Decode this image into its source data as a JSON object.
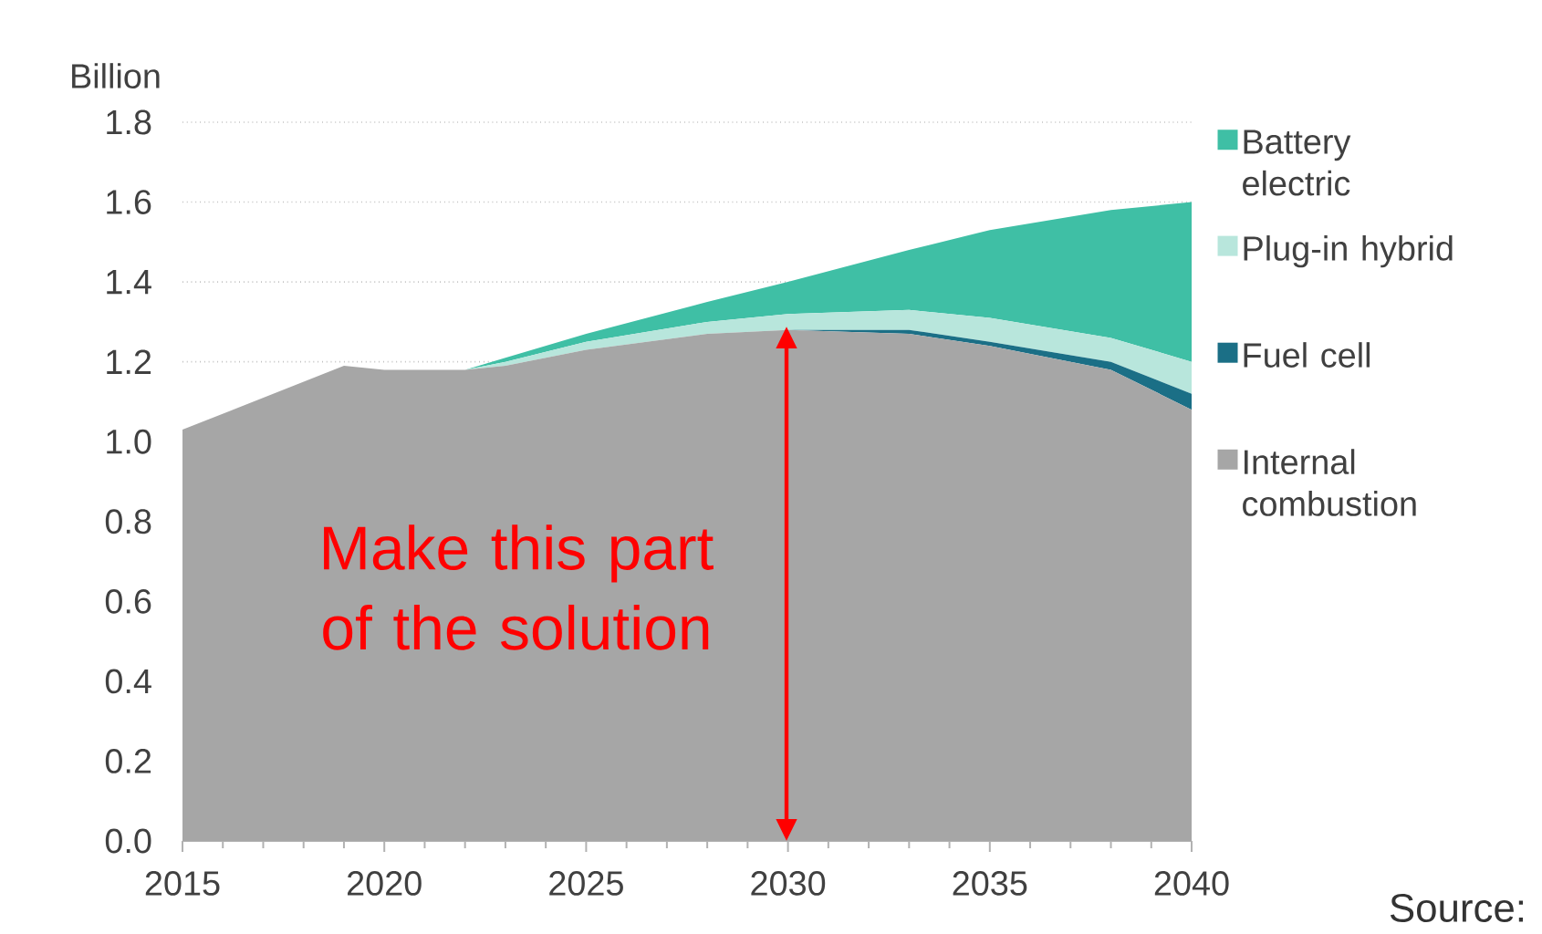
{
  "chart_data": {
    "type": "area",
    "stacked": true,
    "ylabel": "Billion",
    "x": [
      2015,
      2019,
      2020,
      2022,
      2023,
      2025,
      2028,
      2030,
      2033,
      2035,
      2038,
      2040
    ],
    "series": [
      {
        "name": "Internal combustion",
        "color": "#a6a6a6",
        "values": [
          1.03,
          1.19,
          1.18,
          1.18,
          1.19,
          1.23,
          1.27,
          1.28,
          1.27,
          1.24,
          1.18,
          1.08
        ]
      },
      {
        "name": "Fuel cell",
        "color": "#1b6f86",
        "values": [
          0,
          0,
          0,
          0,
          0,
          0,
          0,
          0,
          0.01,
          0.01,
          0.02,
          0.04
        ]
      },
      {
        "name": "Plug-in hybrid",
        "color": "#b8e6dc",
        "values": [
          0,
          0,
          0,
          0,
          0.01,
          0.02,
          0.03,
          0.04,
          0.05,
          0.06,
          0.06,
          0.08
        ]
      },
      {
        "name": "Battery electric",
        "color": "#3fbfa5",
        "values": [
          0,
          0,
          0,
          0,
          0.01,
          0.02,
          0.05,
          0.08,
          0.15,
          0.22,
          0.32,
          0.4
        ]
      }
    ],
    "xlim": [
      2015,
      2040
    ],
    "xticks": [
      2015,
      2020,
      2025,
      2030,
      2035,
      2040
    ],
    "ylim": [
      0,
      1.8
    ],
    "yticks": [
      {
        "value": 0,
        "label": "0.0"
      },
      {
        "value": 0.2,
        "label": "0.2"
      },
      {
        "value": 0.4,
        "label": "0.4"
      },
      {
        "value": 0.6,
        "label": "0.6"
      },
      {
        "value": 0.8,
        "label": "0.8"
      },
      {
        "value": 1.0,
        "label": "1.0"
      },
      {
        "value": 1.2,
        "label": "1.2"
      },
      {
        "value": 1.4,
        "label": "1.4"
      },
      {
        "value": 1.6,
        "label": "1.6"
      },
      {
        "value": 1.8,
        "label": "1.8"
      }
    ],
    "grid": "y",
    "legend": "right",
    "annotations": [
      "Make this part of the solution",
      "Source:"
    ]
  }
}
